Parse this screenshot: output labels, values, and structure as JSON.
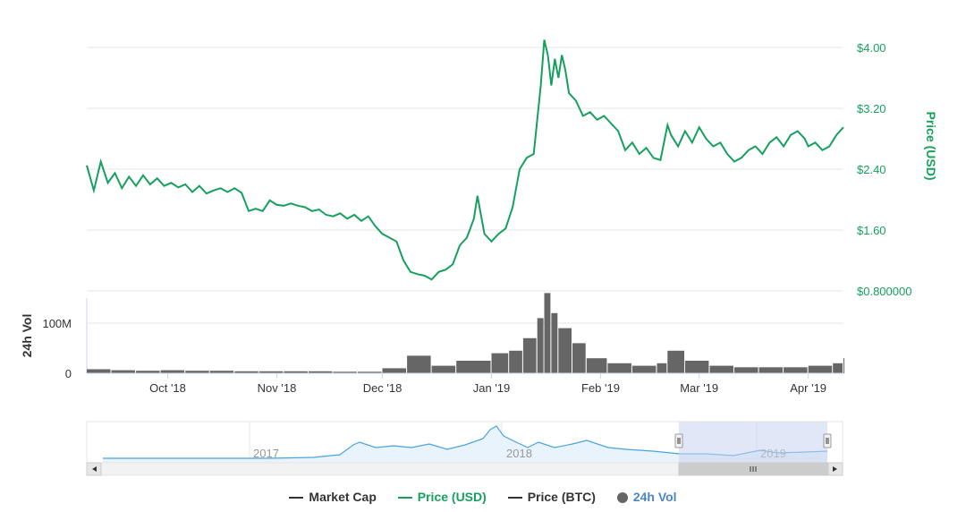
{
  "chart_data": {
    "type": "line",
    "title": "",
    "price_axis": {
      "title": "Price (USD)",
      "ticks": [
        "$4.00",
        "$3.20",
        "$2.40",
        "$1.60",
        "$0.800000"
      ],
      "tick_values": [
        4.0,
        3.2,
        2.4,
        1.6,
        0.8
      ],
      "ylim": [
        0.8,
        4.0
      ],
      "color": "#16a05d"
    },
    "volume_axis": {
      "title": "24h Vol",
      "ticks": [
        "100M",
        "0"
      ],
      "tick_values": [
        100,
        0
      ],
      "unit": "M",
      "ylim": [
        0,
        150
      ]
    },
    "x_axis": {
      "ticks": [
        "Oct '18",
        "Nov '18",
        "Dec '18",
        "Jan '19",
        "Feb '19",
        "Mar '19",
        "Apr '19"
      ],
      "tick_dates": [
        "2018-10-01",
        "2018-11-01",
        "2018-12-01",
        "2019-01-01",
        "2019-02-01",
        "2019-03-01",
        "2019-04-01"
      ],
      "range": [
        "2018-09-08",
        "2019-04-11"
      ]
    },
    "series": [
      {
        "name": "Price (USD)",
        "color": "#16a05d",
        "points": [
          [
            "2018-09-08",
            2.45
          ],
          [
            "2018-09-10",
            2.12
          ],
          [
            "2018-09-12",
            2.5
          ],
          [
            "2018-09-14",
            2.22
          ],
          [
            "2018-09-16",
            2.35
          ],
          [
            "2018-09-18",
            2.15
          ],
          [
            "2018-09-20",
            2.3
          ],
          [
            "2018-09-22",
            2.18
          ],
          [
            "2018-09-24",
            2.32
          ],
          [
            "2018-09-26",
            2.2
          ],
          [
            "2018-09-28",
            2.28
          ],
          [
            "2018-09-30",
            2.18
          ],
          [
            "2018-10-02",
            2.22
          ],
          [
            "2018-10-04",
            2.16
          ],
          [
            "2018-10-06",
            2.2
          ],
          [
            "2018-10-08",
            2.1
          ],
          [
            "2018-10-10",
            2.18
          ],
          [
            "2018-10-12",
            2.08
          ],
          [
            "2018-10-14",
            2.12
          ],
          [
            "2018-10-16",
            2.15
          ],
          [
            "2018-10-18",
            2.1
          ],
          [
            "2018-10-20",
            2.15
          ],
          [
            "2018-10-22",
            2.09
          ],
          [
            "2018-10-24",
            1.85
          ],
          [
            "2018-10-26",
            1.88
          ],
          [
            "2018-10-28",
            1.85
          ],
          [
            "2018-10-30",
            1.99
          ],
          [
            "2018-11-01",
            1.93
          ],
          [
            "2018-11-03",
            1.92
          ],
          [
            "2018-11-05",
            1.95
          ],
          [
            "2018-11-07",
            1.92
          ],
          [
            "2018-11-09",
            1.9
          ],
          [
            "2018-11-11",
            1.85
          ],
          [
            "2018-11-13",
            1.87
          ],
          [
            "2018-11-15",
            1.8
          ],
          [
            "2018-11-17",
            1.78
          ],
          [
            "2018-11-19",
            1.82
          ],
          [
            "2018-11-21",
            1.75
          ],
          [
            "2018-11-23",
            1.8
          ],
          [
            "2018-11-25",
            1.72
          ],
          [
            "2018-11-27",
            1.78
          ],
          [
            "2018-11-29",
            1.65
          ],
          [
            "2018-12-01",
            1.55
          ],
          [
            "2018-12-03",
            1.5
          ],
          [
            "2018-12-05",
            1.45
          ],
          [
            "2018-12-07",
            1.2
          ],
          [
            "2018-12-09",
            1.05
          ],
          [
            "2018-12-11",
            1.02
          ],
          [
            "2018-12-13",
            1.0
          ],
          [
            "2018-12-15",
            0.95
          ],
          [
            "2018-12-17",
            1.05
          ],
          [
            "2018-12-19",
            1.08
          ],
          [
            "2018-12-21",
            1.15
          ],
          [
            "2018-12-23",
            1.4
          ],
          [
            "2018-12-25",
            1.5
          ],
          [
            "2018-12-27",
            1.75
          ],
          [
            "2018-12-28",
            2.05
          ],
          [
            "2018-12-30",
            1.55
          ],
          [
            "2019-01-01",
            1.45
          ],
          [
            "2019-01-03",
            1.55
          ],
          [
            "2019-01-05",
            1.62
          ],
          [
            "2019-01-07",
            1.9
          ],
          [
            "2019-01-09",
            2.4
          ],
          [
            "2019-01-11",
            2.55
          ],
          [
            "2019-01-13",
            2.6
          ],
          [
            "2019-01-15",
            3.5
          ],
          [
            "2019-01-16",
            4.1
          ],
          [
            "2019-01-17",
            3.9
          ],
          [
            "2019-01-18",
            3.5
          ],
          [
            "2019-01-19",
            3.85
          ],
          [
            "2019-01-20",
            3.6
          ],
          [
            "2019-01-21",
            3.9
          ],
          [
            "2019-01-22",
            3.7
          ],
          [
            "2019-01-23",
            3.4
          ],
          [
            "2019-01-25",
            3.3
          ],
          [
            "2019-01-27",
            3.1
          ],
          [
            "2019-01-29",
            3.15
          ],
          [
            "2019-01-31",
            3.05
          ],
          [
            "2019-02-02",
            3.1
          ],
          [
            "2019-02-04",
            3.0
          ],
          [
            "2019-02-06",
            2.9
          ],
          [
            "2019-02-08",
            2.65
          ],
          [
            "2019-02-10",
            2.75
          ],
          [
            "2019-02-12",
            2.6
          ],
          [
            "2019-02-14",
            2.68
          ],
          [
            "2019-02-16",
            2.55
          ],
          [
            "2019-02-18",
            2.52
          ],
          [
            "2019-02-20",
            2.98
          ],
          [
            "2019-02-21",
            2.85
          ],
          [
            "2019-02-23",
            2.7
          ],
          [
            "2019-02-25",
            2.9
          ],
          [
            "2019-02-27",
            2.75
          ],
          [
            "2019-03-01",
            2.95
          ],
          [
            "2019-03-03",
            2.8
          ],
          [
            "2019-03-05",
            2.7
          ],
          [
            "2019-03-07",
            2.75
          ],
          [
            "2019-03-09",
            2.6
          ],
          [
            "2019-03-11",
            2.5
          ],
          [
            "2019-03-13",
            2.55
          ],
          [
            "2019-03-15",
            2.65
          ],
          [
            "2019-03-17",
            2.7
          ],
          [
            "2019-03-19",
            2.6
          ],
          [
            "2019-03-21",
            2.75
          ],
          [
            "2019-03-23",
            2.82
          ],
          [
            "2019-03-25",
            2.7
          ],
          [
            "2019-03-27",
            2.85
          ],
          [
            "2019-03-29",
            2.9
          ],
          [
            "2019-03-31",
            2.8
          ],
          [
            "2019-04-01",
            2.7
          ],
          [
            "2019-04-03",
            2.75
          ],
          [
            "2019-04-05",
            2.65
          ],
          [
            "2019-04-07",
            2.7
          ],
          [
            "2019-04-09",
            2.85
          ],
          [
            "2019-04-11",
            2.95
          ]
        ]
      },
      {
        "name": "24h Vol",
        "color": "#666666",
        "unit": "M",
        "points": [
          [
            "2018-09-08",
            8
          ],
          [
            "2018-09-15",
            6
          ],
          [
            "2018-09-22",
            5
          ],
          [
            "2018-09-29",
            6
          ],
          [
            "2018-10-06",
            5
          ],
          [
            "2018-10-13",
            5
          ],
          [
            "2018-10-20",
            4
          ],
          [
            "2018-10-27",
            4
          ],
          [
            "2018-11-03",
            4
          ],
          [
            "2018-11-10",
            4
          ],
          [
            "2018-11-17",
            3
          ],
          [
            "2018-11-24",
            3
          ],
          [
            "2018-12-01",
            10
          ],
          [
            "2018-12-08",
            35
          ],
          [
            "2018-12-15",
            15
          ],
          [
            "2018-12-22",
            25
          ],
          [
            "2019-01-01",
            40
          ],
          [
            "2019-01-06",
            45
          ],
          [
            "2019-01-10",
            70
          ],
          [
            "2019-01-14",
            110
          ],
          [
            "2019-01-16",
            160
          ],
          [
            "2019-01-18",
            120
          ],
          [
            "2019-01-20",
            90
          ],
          [
            "2019-01-24",
            60
          ],
          [
            "2019-01-28",
            30
          ],
          [
            "2019-02-03",
            20
          ],
          [
            "2019-02-10",
            15
          ],
          [
            "2019-02-17",
            20
          ],
          [
            "2019-02-20",
            45
          ],
          [
            "2019-02-25",
            25
          ],
          [
            "2019-03-04",
            15
          ],
          [
            "2019-03-11",
            12
          ],
          [
            "2019-03-18",
            12
          ],
          [
            "2019-03-25",
            12
          ],
          [
            "2019-04-01",
            15
          ],
          [
            "2019-04-08",
            20
          ],
          [
            "2019-04-11",
            30
          ]
        ]
      }
    ],
    "navigator": {
      "labels": [
        "2017",
        "2018",
        "2019"
      ],
      "selected_range": [
        "2018-09-08",
        "2019-04-11"
      ]
    }
  },
  "legend": [
    {
      "label": "Market Cap",
      "color": "#333333",
      "marker": "line",
      "active": false
    },
    {
      "label": "Price (USD)",
      "color": "#16a05d",
      "marker": "line",
      "active": true
    },
    {
      "label": "Price (BTC)",
      "color": "#333333",
      "marker": "line",
      "active": false
    },
    {
      "label": "24h Vol",
      "color": "#666666",
      "text_color": "#4a86c5",
      "marker": "dot",
      "active": true
    }
  ],
  "colors": {
    "price_line": "#16a05d",
    "volume_bars": "#666666",
    "navigator_line": "#4aa3df",
    "navigator_fill": "#e8f3fb",
    "selection_fill": "#c8d3ee",
    "gridlines": "#e6e6e6"
  }
}
